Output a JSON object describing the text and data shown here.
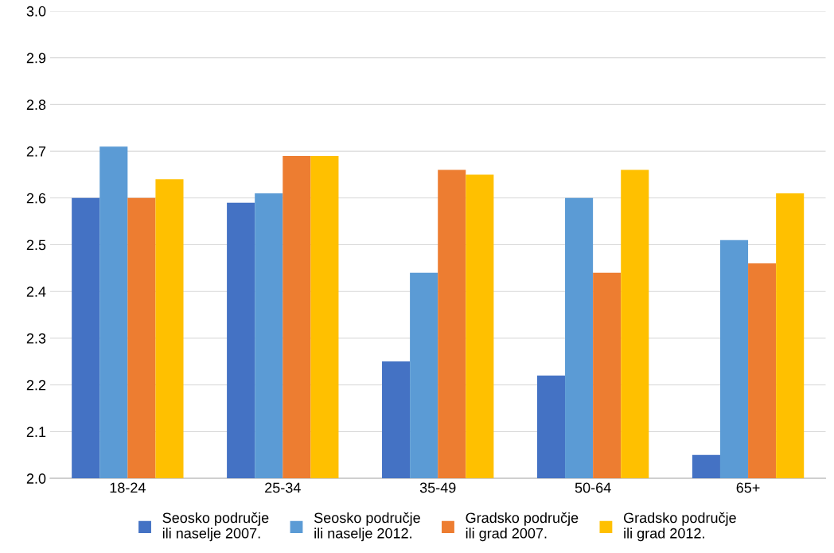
{
  "chart_data": {
    "type": "bar",
    "categories": [
      "18-24",
      "25-34",
      "35-49",
      "50-64",
      "65+"
    ],
    "series": [
      {
        "name": "Seosko područje\nili naselje 2007.",
        "color": "#4472c4",
        "values": [
          2.6,
          2.59,
          2.25,
          2.22,
          2.05
        ]
      },
      {
        "name": "Seosko područje\nili naselje 2012.",
        "color": "#5b9bd5",
        "values": [
          2.71,
          2.61,
          2.44,
          2.6,
          2.51
        ]
      },
      {
        "name": "Gradsko područje\nili grad 2007.",
        "color": "#ed7d31",
        "values": [
          2.6,
          2.69,
          2.66,
          2.44,
          2.46
        ]
      },
      {
        "name": "Gradsko područje\nili grad 2012.",
        "color": "#ffc000",
        "values": [
          2.64,
          2.69,
          2.65,
          2.66,
          2.61
        ]
      }
    ],
    "ylim": [
      2.0,
      3.0
    ],
    "yticks": [
      {
        "value": 2.0,
        "label": "2.0"
      },
      2.1,
      2.2,
      2.3,
      2.4,
      2.5,
      2.6,
      2.7,
      2.8,
      2.9,
      {
        "value": 3.0,
        "label": "3.0"
      }
    ],
    "grid": "y",
    "legend": "bottom"
  }
}
